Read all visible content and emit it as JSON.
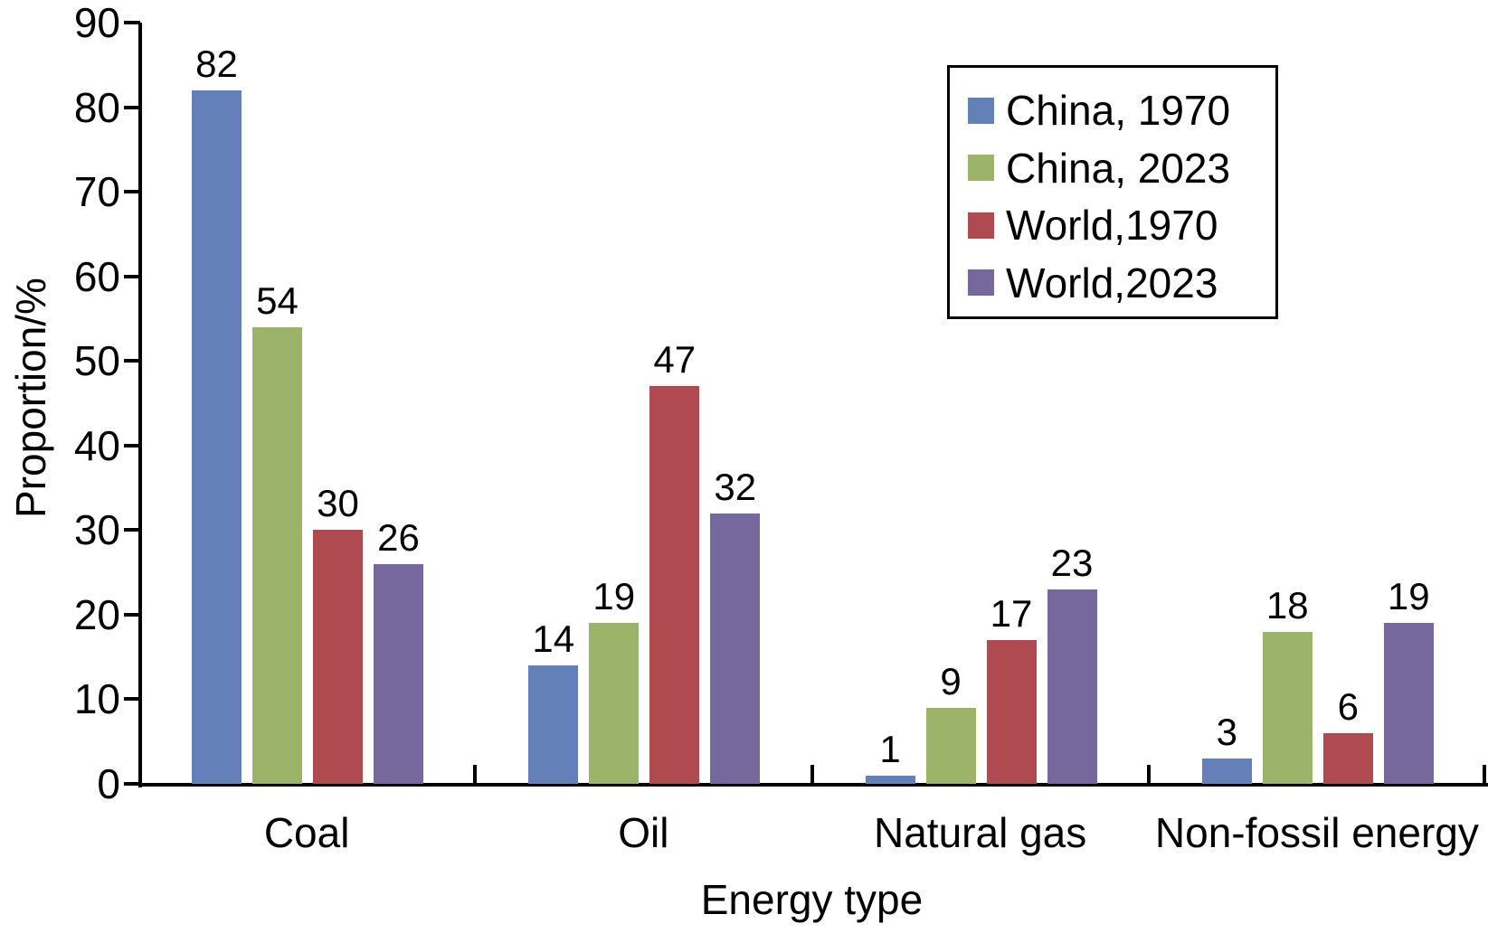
{
  "chart_data": {
    "type": "bar",
    "title": "",
    "xlabel": "Energy type",
    "ylabel": "Proportion/%",
    "ylim": [
      0,
      90
    ],
    "ytick_step": 10,
    "grid": false,
    "legend_position": "top-right",
    "bar_value_labels": true,
    "axis_color": "#000000",
    "categories": [
      "Coal",
      "Oil",
      "Natural gas",
      "Non-fossil energy"
    ],
    "series": [
      {
        "name": "China, 1970",
        "color": "#6380B8",
        "values": [
          82,
          14,
          1,
          3
        ]
      },
      {
        "name": "China, 2023",
        "color": "#9BB469",
        "values": [
          54,
          19,
          9,
          18
        ]
      },
      {
        "name": "World,1970",
        "color": "#AE4A50",
        "values": [
          30,
          47,
          17,
          6
        ]
      },
      {
        "name": "World,2023",
        "color": "#76679C",
        "values": [
          26,
          32,
          23,
          19
        ]
      }
    ]
  }
}
